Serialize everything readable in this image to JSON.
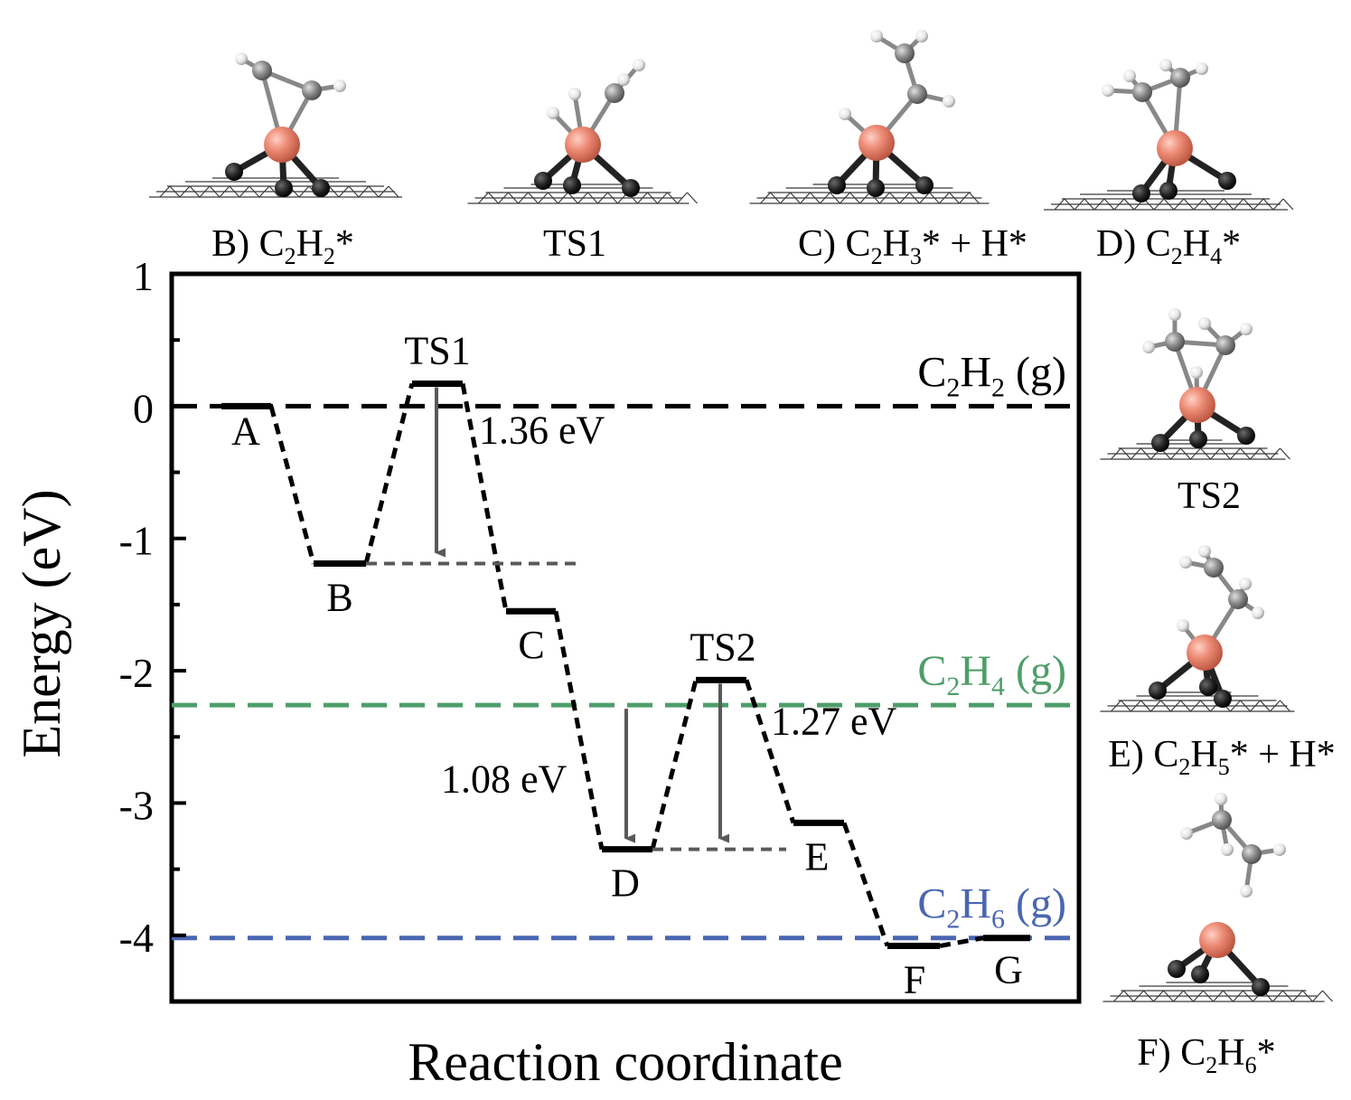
{
  "chart_data": {
    "type": "line",
    "xlabel": "Reaction coordinate",
    "ylabel": "Energy (eV)",
    "ylim": [
      -4.5,
      1
    ],
    "yticks": [
      "1",
      "0",
      "-1",
      "-2",
      "-3",
      "-4"
    ],
    "grid": false,
    "states": [
      {
        "label": "A",
        "energy": 0.0
      },
      {
        "label": "B",
        "energy": -1.19
      },
      {
        "label": "TS1",
        "energy": 0.17
      },
      {
        "label": "C",
        "energy": -1.55
      },
      {
        "label": "D",
        "energy": -3.35
      },
      {
        "label": "TS2",
        "energy": -2.07
      },
      {
        "label": "E",
        "energy": -3.15
      },
      {
        "label": "F",
        "energy": -4.08
      },
      {
        "label": "G",
        "energy": -4.02
      }
    ],
    "reference_lines": [
      {
        "label_main": "C",
        "sub1": "2",
        "mid": "H",
        "sub2": "2",
        "suffix": " (g)",
        "energy": 0.0,
        "color": "#000000"
      },
      {
        "label_main": "C",
        "sub1": "2",
        "mid": "H",
        "sub2": "4",
        "suffix": " (g)",
        "energy": -2.26,
        "color": "#4e9e6a"
      },
      {
        "label_main": "C",
        "sub1": "2",
        "mid": "H",
        "sub2": "6",
        "suffix": " (g)",
        "energy": -4.02,
        "color": "#4a66b2"
      }
    ],
    "barriers": [
      {
        "label": "1.36 eV",
        "from": "TS1",
        "to": "B"
      },
      {
        "label": "1.08 eV",
        "from": "C2H4 (g)",
        "to": "D"
      },
      {
        "label": "1.27 eV",
        "from": "TS2",
        "to": "D"
      }
    ]
  },
  "structure_labels": {
    "B": {
      "pre": "B) C",
      "s1": "2",
      "mid": "H",
      "s2": "2",
      "post": "*"
    },
    "TS1": {
      "text": "TS1"
    },
    "C": {
      "pre": "C) C",
      "s1": "2",
      "mid": "H",
      "s2": "3",
      "post": "* + H*"
    },
    "D": {
      "pre": "D) C",
      "s1": "2",
      "mid": "H",
      "s2": "4",
      "post": "*"
    },
    "TS2": {
      "text": "TS2"
    },
    "E": {
      "pre": "E) C",
      "s1": "2",
      "mid": "H",
      "s2": "5",
      "post": "* + H*"
    },
    "F": {
      "pre": "F) C",
      "s1": "2",
      "mid": "H",
      "s2": "6",
      "post": "*"
    }
  },
  "colors": {
    "metal_atom": "#e8826e",
    "carbon_atom": "#8a8a8a",
    "hydrogen_atom": "#f2f2f2",
    "substrate_atom": "#1a1a1a",
    "barrier_arrow": "#595959"
  }
}
